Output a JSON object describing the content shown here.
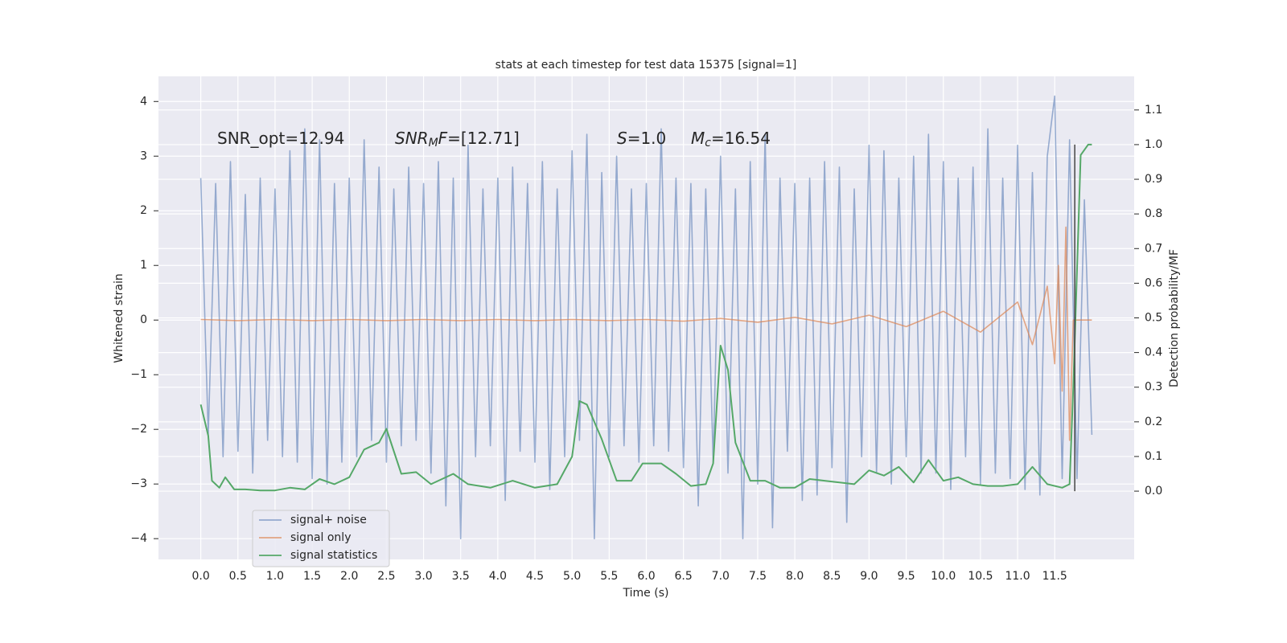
{
  "chart_data": {
    "type": "line",
    "title": "stats at each timestep for test data 15375 [signal=1]",
    "xlabel": "Time (s)",
    "ylabel": "Whitened strain",
    "y2label": "Detection probability/MF",
    "xlim": [
      -0.57,
      12.57
    ],
    "ylim": [
      -4.38,
      4.46
    ],
    "y2lim": [
      -0.197,
      1.197
    ],
    "grid": true,
    "background": "#eaeaf2",
    "legend": "lower left",
    "xticks": [
      {
        "value": 0,
        "label": "0.0"
      },
      {
        "value": 0.5,
        "label": "0.5"
      },
      {
        "value": 1,
        "label": "1.0"
      },
      {
        "value": 1.5,
        "label": "1.5"
      },
      {
        "value": 2,
        "label": "2.0"
      },
      {
        "value": 2.5,
        "label": "2.5"
      },
      {
        "value": 3,
        "label": "3.0"
      },
      {
        "value": 3.5,
        "label": "3.5"
      },
      {
        "value": 4,
        "label": "4.0"
      },
      {
        "value": 4.5,
        "label": "4.5"
      },
      {
        "value": 5,
        "label": "5.0"
      },
      {
        "value": 5.5,
        "label": "5.5"
      },
      {
        "value": 6,
        "label": "6.0"
      },
      {
        "value": 6.5,
        "label": "6.5"
      },
      {
        "value": 7,
        "label": "7.0"
      },
      {
        "value": 7.5,
        "label": "7.5"
      },
      {
        "value": 8,
        "label": "8.0"
      },
      {
        "value": 8.5,
        "label": "8.5"
      },
      {
        "value": 9,
        "label": "9.0"
      },
      {
        "value": 9.5,
        "label": "9.5"
      },
      {
        "value": 10,
        "label": "10.0"
      },
      {
        "value": 10.5,
        "label": "10.5"
      },
      {
        "value": 11,
        "label": "11.0"
      },
      {
        "value": 11.5,
        "label": "11.5"
      }
    ],
    "yticks": [
      {
        "value": -4,
        "label": "−4"
      },
      {
        "value": -3,
        "label": "−3"
      },
      {
        "value": -2,
        "label": "−2"
      },
      {
        "value": -1,
        "label": "−1"
      },
      0,
      1,
      2,
      3,
      4
    ],
    "y2ticks": [
      {
        "value": 0,
        "label": "0.0"
      },
      {
        "value": 0.1,
        "label": "0.1"
      },
      {
        "value": 0.2,
        "label": "0.2"
      },
      {
        "value": 0.3,
        "label": "0.3"
      },
      {
        "value": 0.4,
        "label": "0.4"
      },
      {
        "value": 0.5,
        "label": "0.5"
      },
      {
        "value": 0.6,
        "label": "0.6"
      },
      {
        "value": 0.7,
        "label": "0.7"
      },
      {
        "value": 0.8,
        "label": "0.8"
      },
      {
        "value": 0.9,
        "label": "0.9"
      },
      {
        "value": 1,
        "label": "1.0"
      },
      {
        "value": 1.1,
        "label": "1.1"
      }
    ],
    "annotations": [
      [
        {
          "text": "SNR_opt=12.94"
        }
      ],
      [
        {
          "text": "SNR",
          "math": true
        },
        {
          "text": "M",
          "math": true,
          "sub": true
        },
        {
          "text": "F",
          "math": true
        },
        {
          "text": "=[12.71]"
        }
      ],
      [
        {
          "text": "S",
          "math": true
        },
        {
          "text": "=1.0"
        }
      ],
      [
        {
          "text": "M",
          "math": true
        },
        {
          "text": "c",
          "math": true,
          "sub": true
        },
        {
          "text": "=16.54"
        }
      ]
    ],
    "vline": {
      "x": 11.77,
      "ymin": 0,
      "ymax": 1.0,
      "axis": "y2",
      "color": "#444444"
    },
    "series": [
      {
        "name": "signal+ noise",
        "color": "#4c72b0",
        "opacity": 0.55,
        "x": [
          0,
          0.1,
          0.2,
          0.3,
          0.4,
          0.5,
          0.6,
          0.7,
          0.8,
          0.9,
          1,
          1.1,
          1.2,
          1.3,
          1.4,
          1.5,
          1.6,
          1.7,
          1.8,
          1.9,
          2,
          2.1,
          2.2,
          2.3,
          2.4,
          2.5,
          2.6,
          2.7,
          2.8,
          2.9,
          3,
          3.1,
          3.2,
          3.3,
          3.4,
          3.5,
          3.6,
          3.7,
          3.8,
          3.9,
          4,
          4.1,
          4.2,
          4.3,
          4.4,
          4.5,
          4.6,
          4.7,
          4.8,
          4.9,
          5,
          5.1,
          5.2,
          5.3,
          5.4,
          5.5,
          5.6,
          5.7,
          5.8,
          5.9,
          6,
          6.1,
          6.2,
          6.3,
          6.4,
          6.5,
          6.6,
          6.7,
          6.8,
          6.9,
          7,
          7.1,
          7.2,
          7.3,
          7.4,
          7.5,
          7.6,
          7.7,
          7.8,
          7.9,
          8,
          8.1,
          8.2,
          8.3,
          8.4,
          8.5,
          8.6,
          8.7,
          8.8,
          8.9,
          9,
          9.1,
          9.2,
          9.3,
          9.4,
          9.5,
          9.6,
          9.7,
          9.8,
          9.9,
          10,
          10.1,
          10.2,
          10.3,
          10.4,
          10.5,
          10.6,
          10.7,
          10.8,
          10.9,
          11,
          11.1,
          11.2,
          11.3,
          11.4,
          11.5,
          11.6,
          11.7,
          11.8,
          11.9,
          12
        ],
        "values": [
          2.6,
          -2.1,
          2.5,
          -2.5,
          2.9,
          -2.4,
          2.3,
          -2.8,
          2.6,
          -2.2,
          2.4,
          -2.5,
          3.1,
          -2.6,
          3.5,
          -2.9,
          3.3,
          -3.0,
          2.5,
          -2.6,
          2.6,
          -2.5,
          3.3,
          -2.2,
          2.8,
          -2.6,
          2.4,
          -2.3,
          2.8,
          -2.2,
          2.5,
          -2.8,
          2.9,
          -3.4,
          2.6,
          -4.0,
          3.2,
          -2.5,
          2.4,
          -2.3,
          2.6,
          -3.3,
          2.8,
          -2.4,
          2.5,
          -2.6,
          2.9,
          -3.1,
          2.4,
          -2.5,
          3.1,
          -2.2,
          3.4,
          -4.0,
          2.7,
          -2.5,
          3.0,
          -2.3,
          2.4,
          -2.6,
          2.5,
          -2.3,
          3.5,
          -2.4,
          2.6,
          -2.7,
          2.5,
          -3.4,
          2.4,
          -2.6,
          3.0,
          -2.8,
          2.4,
          -4.0,
          2.9,
          -3.0,
          3.4,
          -3.8,
          2.6,
          -2.4,
          2.5,
          -3.3,
          2.6,
          -3.2,
          2.9,
          -2.7,
          2.8,
          -3.7,
          2.4,
          -2.5,
          3.2,
          -2.8,
          3.1,
          -3.0,
          2.6,
          -2.5,
          3.0,
          -2.8,
          3.4,
          -2.8,
          2.9,
          -3.1,
          2.6,
          -2.5,
          2.8,
          -3.0,
          3.5,
          -2.8,
          2.6,
          -2.9,
          3.2,
          -3.1,
          2.7,
          -3.2,
          3.0,
          4.1,
          -2.9,
          3.3,
          -2.9,
          2.2,
          -2.1
        ]
      },
      {
        "name": "signal only",
        "color": "#dd8452",
        "opacity": 0.7,
        "x": [
          0,
          0.5,
          1,
          1.5,
          2,
          2.5,
          3,
          3.5,
          4,
          4.5,
          5,
          5.5,
          6,
          6.5,
          7,
          7.5,
          8,
          8.5,
          9,
          9.5,
          10,
          10.5,
          11,
          11.2,
          11.4,
          11.5,
          11.55,
          11.6,
          11.65,
          11.7,
          11.75,
          12
        ],
        "values": [
          0.01,
          -0.01,
          0.01,
          -0.01,
          0.01,
          -0.01,
          0.01,
          -0.01,
          0.01,
          -0.01,
          0.01,
          -0.01,
          0.01,
          -0.02,
          0.03,
          -0.04,
          0.05,
          -0.07,
          0.09,
          -0.12,
          0.16,
          -0.22,
          0.33,
          -0.45,
          0.62,
          -0.8,
          1.0,
          -1.3,
          1.7,
          -2.2,
          0,
          0
        ]
      },
      {
        "name": "signal statistics",
        "color": "#55a868",
        "axis": "y2",
        "x": [
          0,
          0.1,
          0.15,
          0.25,
          0.33,
          0.45,
          0.6,
          0.8,
          1,
          1.2,
          1.4,
          1.6,
          1.8,
          2,
          2.2,
          2.4,
          2.5,
          2.7,
          2.9,
          3.1,
          3.4,
          3.6,
          3.9,
          4.2,
          4.5,
          4.8,
          5,
          5.1,
          5.2,
          5.4,
          5.6,
          5.8,
          5.95,
          6.2,
          6.4,
          6.6,
          6.8,
          6.9,
          7,
          7.1,
          7.2,
          7.4,
          7.6,
          7.8,
          8,
          8.2,
          8.4,
          8.6,
          8.8,
          9,
          9.2,
          9.4,
          9.6,
          9.8,
          10,
          10.2,
          10.4,
          10.6,
          10.8,
          11,
          11.2,
          11.4,
          11.6,
          11.7,
          11.75,
          11.85,
          11.95,
          12
        ],
        "values": [
          0.25,
          0.16,
          0.03,
          0.01,
          0.04,
          0.005,
          0.005,
          0.002,
          0.002,
          0.01,
          0.005,
          0.035,
          0.02,
          0.04,
          0.12,
          0.14,
          0.18,
          0.05,
          0.055,
          0.02,
          0.05,
          0.02,
          0.01,
          0.03,
          0.01,
          0.02,
          0.1,
          0.26,
          0.25,
          0.15,
          0.03,
          0.03,
          0.08,
          0.08,
          0.05,
          0.015,
          0.02,
          0.08,
          0.42,
          0.35,
          0.14,
          0.03,
          0.03,
          0.01,
          0.01,
          0.035,
          0.03,
          0.025,
          0.02,
          0.06,
          0.045,
          0.07,
          0.025,
          0.09,
          0.03,
          0.04,
          0.02,
          0.015,
          0.015,
          0.02,
          0.07,
          0.02,
          0.01,
          0.02,
          0.3,
          0.97,
          1.0,
          1.0
        ]
      }
    ]
  }
}
